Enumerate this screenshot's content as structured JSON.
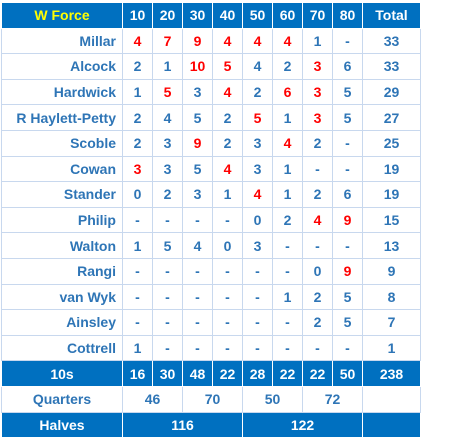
{
  "header": {
    "team": "W Force",
    "columns": [
      "10",
      "20",
      "30",
      "40",
      "50",
      "60",
      "70",
      "80"
    ],
    "total": "Total"
  },
  "players": [
    {
      "name": "Millar",
      "scores": [
        "4",
        "7",
        "9",
        "4",
        "4",
        "4",
        "1",
        "-"
      ],
      "total": "33",
      "red": [
        0,
        1,
        2,
        3,
        4,
        5
      ]
    },
    {
      "name": "Alcock",
      "scores": [
        "2",
        "1",
        "10",
        "5",
        "4",
        "2",
        "3",
        "6"
      ],
      "total": "33",
      "red": [
        2,
        3,
        6
      ]
    },
    {
      "name": "Hardwick",
      "scores": [
        "1",
        "5",
        "3",
        "4",
        "2",
        "6",
        "3",
        "5"
      ],
      "total": "29",
      "red": [
        1,
        3,
        5,
        6
      ]
    },
    {
      "name": "R Haylett-Petty",
      "scores": [
        "2",
        "4",
        "5",
        "2",
        "5",
        "1",
        "3",
        "5"
      ],
      "total": "27",
      "red": [
        4,
        6
      ]
    },
    {
      "name": "Scoble",
      "scores": [
        "2",
        "3",
        "9",
        "2",
        "3",
        "4",
        "2",
        "-"
      ],
      "total": "25",
      "red": [
        2,
        5
      ]
    },
    {
      "name": "Cowan",
      "scores": [
        "3",
        "3",
        "5",
        "4",
        "3",
        "1",
        "-",
        "-"
      ],
      "total": "19",
      "red": [
        0,
        3
      ]
    },
    {
      "name": "Stander",
      "scores": [
        "0",
        "2",
        "3",
        "1",
        "4",
        "1",
        "2",
        "6"
      ],
      "total": "19",
      "red": [
        4
      ]
    },
    {
      "name": "Philip",
      "scores": [
        "-",
        "-",
        "-",
        "-",
        "0",
        "2",
        "4",
        "9"
      ],
      "total": "15",
      "red": [
        6,
        7
      ]
    },
    {
      "name": "Walton",
      "scores": [
        "1",
        "5",
        "4",
        "0",
        "3",
        "-",
        "-",
        "-"
      ],
      "total": "13",
      "red": []
    },
    {
      "name": "Rangi",
      "scores": [
        "-",
        "-",
        "-",
        "-",
        "-",
        "-",
        "0",
        "9"
      ],
      "total": "9",
      "red": [
        7
      ]
    },
    {
      "name": "van Wyk",
      "scores": [
        "-",
        "-",
        "-",
        "-",
        "-",
        "1",
        "2",
        "5"
      ],
      "total": "8",
      "red": []
    },
    {
      "name": "Ainsley",
      "scores": [
        "-",
        "-",
        "-",
        "-",
        "-",
        "-",
        "2",
        "5"
      ],
      "total": "7",
      "red": []
    },
    {
      "name": "Cottrell",
      "scores": [
        "1",
        "-",
        "-",
        "-",
        "-",
        "-",
        "-",
        "-"
      ],
      "total": "1",
      "red": []
    }
  ],
  "tens": {
    "label": "10s",
    "values": [
      "16",
      "30",
      "48",
      "22",
      "28",
      "22",
      "22",
      "50"
    ],
    "total": "238"
  },
  "quarters": {
    "label": "Quarters",
    "values": [
      "46",
      "70",
      "50",
      "72"
    ]
  },
  "halves": {
    "label": "Halves",
    "values": [
      "116",
      "122"
    ]
  },
  "colors": {
    "header_bg": "#0070c0",
    "header_team": "#ffff00",
    "value_blue": "#2e75b6",
    "value_red": "#ff0000"
  }
}
